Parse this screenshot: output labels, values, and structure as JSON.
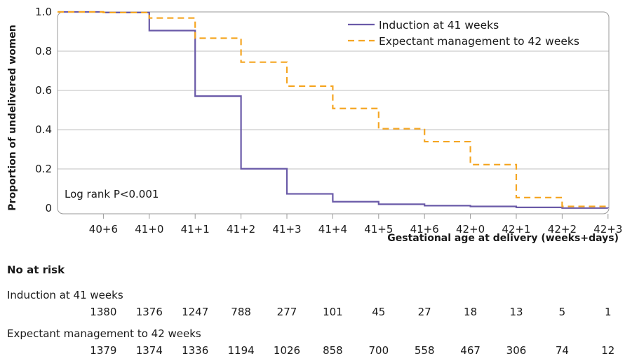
{
  "chart_data": {
    "type": "line",
    "step": true,
    "ylabel": "Proportion of undelivered women",
    "xlabel": "Gestational age at delivery (weeks+days)",
    "x_ticks": [
      "40+6",
      "41+0",
      "41+1",
      "41+2",
      "41+3",
      "41+4",
      "41+5",
      "41+6",
      "42+0",
      "42+1",
      "42+2",
      "42+3"
    ],
    "y_ticks": [
      "0",
      "0.2",
      "0.4",
      "0.6",
      "0.8",
      "1.0"
    ],
    "ylim": [
      0,
      1.0
    ],
    "grid": true,
    "legend_position": "top-right",
    "annotation": "Log rank P<0.001",
    "series": [
      {
        "name": "Induction at 41 weeks",
        "color": "#6a5aa8",
        "style": "solid",
        "steps": [
          {
            "x": "40+5",
            "y": 1.0
          },
          {
            "x": "40+6",
            "y": 0.997
          },
          {
            "x": "41+0",
            "y": 0.905
          },
          {
            "x": "41+1",
            "y": 0.571
          },
          {
            "x": "41+2",
            "y": 0.201
          },
          {
            "x": "41+3",
            "y": 0.073
          },
          {
            "x": "41+4",
            "y": 0.033
          },
          {
            "x": "41+5",
            "y": 0.02
          },
          {
            "x": "41+6",
            "y": 0.013
          },
          {
            "x": "42+0",
            "y": 0.009
          },
          {
            "x": "42+1",
            "y": 0.004
          },
          {
            "x": "42+2",
            "y": 0.0007
          },
          {
            "x": "42+3",
            "y": 0.0
          }
        ]
      },
      {
        "name": "Expectant management to 42 weeks",
        "color": "#f5a623",
        "style": "dashed",
        "steps": [
          {
            "x": "40+5",
            "y": 1.0
          },
          {
            "x": "40+6",
            "y": 0.997
          },
          {
            "x": "41+0",
            "y": 0.969
          },
          {
            "x": "41+1",
            "y": 0.866
          },
          {
            "x": "41+2",
            "y": 0.744
          },
          {
            "x": "41+3",
            "y": 0.622
          },
          {
            "x": "41+4",
            "y": 0.508
          },
          {
            "x": "41+5",
            "y": 0.405
          },
          {
            "x": "41+6",
            "y": 0.339
          },
          {
            "x": "42+0",
            "y": 0.222
          },
          {
            "x": "42+1",
            "y": 0.054
          },
          {
            "x": "42+2",
            "y": 0.009
          },
          {
            "x": "42+3",
            "y": 0.0
          }
        ]
      }
    ],
    "risk_table": {
      "title": "No at risk",
      "rows": [
        {
          "name": "Induction at 41 weeks",
          "values": [
            "1380",
            "1376",
            "1247",
            "788",
            "277",
            "101",
            "45",
            "27",
            "18",
            "13",
            "5",
            "1"
          ]
        },
        {
          "name": "Expectant management to 42 weeks",
          "values": [
            "1379",
            "1374",
            "1336",
            "1194",
            "1026",
            "858",
            "700",
            "558",
            "467",
            "306",
            "74",
            "12"
          ]
        }
      ]
    }
  }
}
